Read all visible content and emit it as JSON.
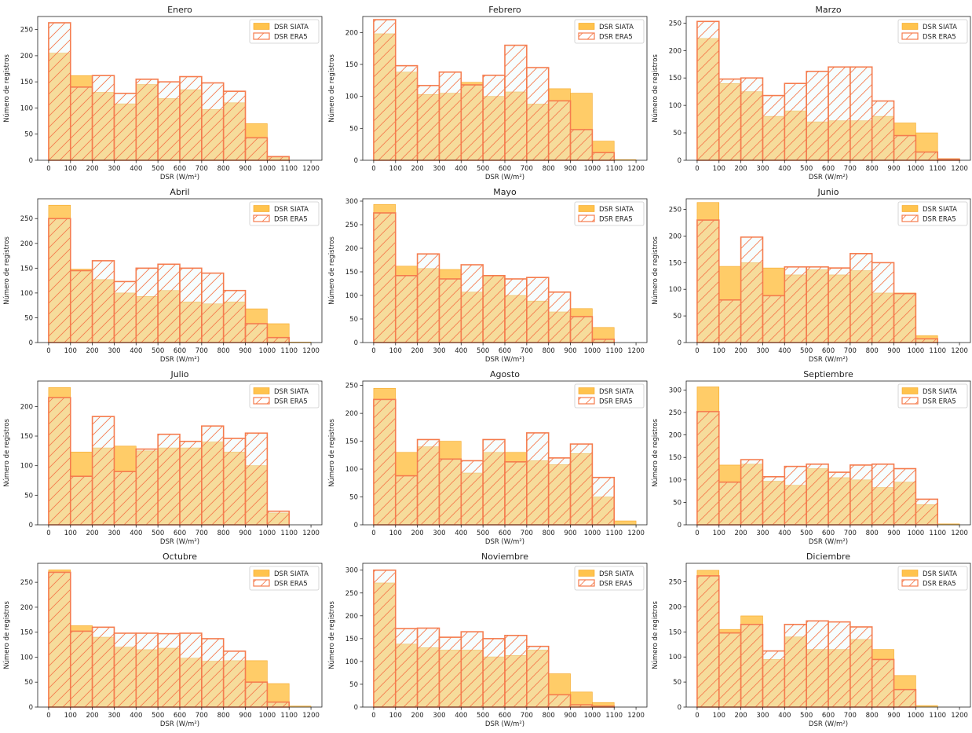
{
  "colors": {
    "siata_fill": "#ffc34d",
    "siata_edge": "#f5a623",
    "era5_edge": "#f57c4e",
    "era5_fill": "#e6fafc",
    "overlap_fill": "#f5e1bb",
    "axis": "#222222"
  },
  "chart_data": [
    {
      "type": "bar",
      "title": "Enero",
      "xlabel": "DSR (W/m²)",
      "ylabel": "Número de registros",
      "categories": [
        "0-100",
        "100-200",
        "200-300",
        "300-400",
        "400-500",
        "500-600",
        "600-700",
        "700-800",
        "800-900",
        "900-1000",
        "1000-1100",
        "1100-1200"
      ],
      "xticks": [
        "0",
        "100",
        "200",
        "300",
        "400",
        "500",
        "600",
        "700",
        "800",
        "900",
        "1000",
        "1100",
        "1200"
      ],
      "ylim": [
        0,
        275
      ],
      "yticks": [
        0,
        50,
        100,
        150,
        200,
        250
      ],
      "legend_position": "top-right",
      "series": [
        {
          "name": "DSR SIATA",
          "values": [
            205,
            162,
            130,
            108,
            145,
            118,
            135,
            97,
            110,
            70,
            5,
            0
          ]
        },
        {
          "name": "DSR ERA5",
          "values": [
            263,
            140,
            162,
            128,
            155,
            150,
            160,
            148,
            132,
            43,
            7,
            0
          ]
        }
      ]
    },
    {
      "type": "bar",
      "title": "Febrero",
      "xlabel": "DSR (W/m²)",
      "ylabel": "Número de registros",
      "categories": [
        "0-100",
        "100-200",
        "200-300",
        "300-400",
        "400-500",
        "500-600",
        "600-700",
        "700-800",
        "800-900",
        "900-1000",
        "1000-1100",
        "1100-1200"
      ],
      "xticks": [
        "0",
        "100",
        "200",
        "300",
        "400",
        "500",
        "600",
        "700",
        "800",
        "900",
        "1000",
        "1100",
        "1200"
      ],
      "ylim": [
        0,
        225
      ],
      "yticks": [
        0,
        50,
        100,
        150,
        200
      ],
      "legend_position": "top-right",
      "series": [
        {
          "name": "DSR SIATA",
          "values": [
            198,
            138,
            103,
            105,
            122,
            100,
            107,
            88,
            112,
            105,
            30,
            1
          ]
        },
        {
          "name": "DSR ERA5",
          "values": [
            220,
            148,
            117,
            138,
            118,
            133,
            180,
            145,
            93,
            48,
            12,
            0
          ]
        }
      ]
    },
    {
      "type": "bar",
      "title": "Marzo",
      "xlabel": "DSR (W/m²)",
      "ylabel": "Número de registros",
      "categories": [
        "0-100",
        "100-200",
        "200-300",
        "300-400",
        "400-500",
        "500-600",
        "600-700",
        "700-800",
        "800-900",
        "900-1000",
        "1000-1100",
        "1100-1200"
      ],
      "xticks": [
        "0",
        "100",
        "200",
        "300",
        "400",
        "500",
        "600",
        "700",
        "800",
        "900",
        "1000",
        "1100",
        "1200"
      ],
      "ylim": [
        0,
        262
      ],
      "yticks": [
        0,
        50,
        100,
        150,
        200,
        250
      ],
      "legend_position": "top-right",
      "series": [
        {
          "name": "DSR SIATA",
          "values": [
            222,
            140,
            125,
            80,
            90,
            70,
            72,
            72,
            80,
            68,
            50,
            3
          ]
        },
        {
          "name": "DSR ERA5",
          "values": [
            253,
            148,
            150,
            118,
            140,
            162,
            170,
            170,
            108,
            45,
            15,
            2
          ]
        }
      ]
    },
    {
      "type": "bar",
      "title": "Abril",
      "xlabel": "DSR (W/m²)",
      "ylabel": "Número de registros",
      "categories": [
        "0-100",
        "100-200",
        "200-300",
        "300-400",
        "400-500",
        "500-600",
        "600-700",
        "700-800",
        "800-900",
        "900-1000",
        "1000-1100",
        "1100-1200"
      ],
      "xticks": [
        "0",
        "100",
        "200",
        "300",
        "400",
        "500",
        "600",
        "700",
        "800",
        "900",
        "1000",
        "1100",
        "1200"
      ],
      "ylim": [
        0,
        290
      ],
      "yticks": [
        0,
        50,
        100,
        150,
        200,
        250
      ],
      "legend_position": "top-right",
      "series": [
        {
          "name": "DSR SIATA",
          "values": [
            277,
            148,
            127,
            100,
            93,
            105,
            82,
            78,
            82,
            68,
            38,
            1
          ]
        },
        {
          "name": "DSR ERA5",
          "values": [
            250,
            145,
            165,
            123,
            150,
            158,
            150,
            140,
            105,
            38,
            10,
            0
          ]
        }
      ]
    },
    {
      "type": "bar",
      "title": "Mayo",
      "xlabel": "DSR (W/m²)",
      "ylabel": "Número de registros",
      "categories": [
        "0-100",
        "100-200",
        "200-300",
        "300-400",
        "400-500",
        "500-600",
        "600-700",
        "700-800",
        "800-900",
        "900-1000",
        "1000-1100",
        "1100-1200"
      ],
      "xticks": [
        "0",
        "100",
        "200",
        "300",
        "400",
        "500",
        "600",
        "700",
        "800",
        "900",
        "1000",
        "1100",
        "1200"
      ],
      "ylim": [
        0,
        305
      ],
      "yticks": [
        0,
        50,
        100,
        150,
        200,
        250,
        300
      ],
      "legend_position": "top-right",
      "series": [
        {
          "name": "DSR SIATA",
          "values": [
            293,
            162,
            157,
            155,
            107,
            142,
            100,
            88,
            65,
            72,
            32,
            0
          ]
        },
        {
          "name": "DSR ERA5",
          "values": [
            275,
            142,
            188,
            135,
            165,
            142,
            135,
            138,
            107,
            55,
            7,
            0
          ]
        }
      ]
    },
    {
      "type": "bar",
      "title": "Junio",
      "xlabel": "DSR (W/m²)",
      "ylabel": "Número de registros",
      "categories": [
        "0-100",
        "100-200",
        "200-300",
        "300-400",
        "400-500",
        "500-600",
        "600-700",
        "700-800",
        "800-900",
        "900-1000",
        "1000-1100",
        "1100-1200"
      ],
      "xticks": [
        "0",
        "100",
        "200",
        "300",
        "400",
        "500",
        "600",
        "700",
        "800",
        "900",
        "1000",
        "1100",
        "1200"
      ],
      "ylim": [
        0,
        270
      ],
      "yticks": [
        0,
        50,
        100,
        150,
        200,
        250
      ],
      "legend_position": "top-right",
      "series": [
        {
          "name": "DSR SIATA",
          "values": [
            263,
            143,
            150,
            140,
            127,
            137,
            127,
            135,
            93,
            93,
            13,
            0
          ]
        },
        {
          "name": "DSR ERA5",
          "values": [
            230,
            80,
            198,
            88,
            142,
            142,
            140,
            167,
            150,
            92,
            7,
            0
          ]
        }
      ]
    },
    {
      "type": "bar",
      "title": "Julio",
      "xlabel": "DSR (W/m²)",
      "ylabel": "Número de registros",
      "categories": [
        "0-100",
        "100-200",
        "200-300",
        "300-400",
        "400-500",
        "500-600",
        "600-700",
        "700-800",
        "800-900",
        "900-1000",
        "1000-1100",
        "1100-1200"
      ],
      "xticks": [
        "0",
        "100",
        "200",
        "300",
        "400",
        "500",
        "600",
        "700",
        "800",
        "900",
        "1000",
        "1100",
        "1200"
      ],
      "ylim": [
        0,
        243
      ],
      "yticks": [
        0,
        50,
        100,
        150,
        200
      ],
      "legend_position": "top-right",
      "series": [
        {
          "name": "DSR SIATA",
          "values": [
            232,
            123,
            130,
            133,
            125,
            130,
            130,
            140,
            123,
            100,
            20,
            0
          ]
        },
        {
          "name": "DSR ERA5",
          "values": [
            215,
            82,
            183,
            90,
            128,
            153,
            141,
            167,
            146,
            155,
            23,
            0
          ]
        }
      ]
    },
    {
      "type": "bar",
      "title": "Agosto",
      "xlabel": "DSR (W/m²)",
      "ylabel": "Número de registros",
      "categories": [
        "0-100",
        "100-200",
        "200-300",
        "300-400",
        "400-500",
        "500-600",
        "600-700",
        "700-800",
        "800-900",
        "900-1000",
        "1000-1100",
        "1100-1200"
      ],
      "xticks": [
        "0",
        "100",
        "200",
        "300",
        "400",
        "500",
        "600",
        "700",
        "800",
        "900",
        "1000",
        "1100",
        "1200"
      ],
      "ylim": [
        0,
        258
      ],
      "yticks": [
        0,
        50,
        100,
        150,
        200,
        250
      ],
      "legend_position": "top-right",
      "series": [
        {
          "name": "DSR SIATA",
          "values": [
            245,
            130,
            140,
            150,
            93,
            130,
            130,
            115,
            108,
            128,
            50,
            7
          ]
        },
        {
          "name": "DSR ERA5",
          "values": [
            225,
            88,
            153,
            118,
            115,
            153,
            113,
            165,
            120,
            145,
            85,
            0
          ]
        }
      ]
    },
    {
      "type": "bar",
      "title": "Septiembre",
      "xlabel": "DSR (W/m²)",
      "ylabel": "Número de registros",
      "categories": [
        "0-100",
        "100-200",
        "200-300",
        "300-400",
        "400-500",
        "500-600",
        "600-700",
        "700-800",
        "800-900",
        "900-1000",
        "1000-1100",
        "1100-1200"
      ],
      "xticks": [
        "0",
        "100",
        "200",
        "300",
        "400",
        "500",
        "600",
        "700",
        "800",
        "900",
        "1000",
        "1100",
        "1200"
      ],
      "ylim": [
        0,
        320
      ],
      "yticks": [
        0,
        50,
        100,
        150,
        200,
        250,
        300
      ],
      "legend_position": "top-right",
      "series": [
        {
          "name": "DSR SIATA",
          "values": [
            307,
            133,
            135,
            97,
            88,
            125,
            105,
            100,
            83,
            95,
            45,
            2
          ]
        },
        {
          "name": "DSR ERA5",
          "values": [
            252,
            95,
            145,
            107,
            130,
            135,
            117,
            133,
            135,
            125,
            57,
            0
          ]
        }
      ]
    },
    {
      "type": "bar",
      "title": "Octubre",
      "xlabel": "DSR (W/m²)",
      "ylabel": "Número de registros",
      "categories": [
        "0-100",
        "100-200",
        "200-300",
        "300-400",
        "400-500",
        "500-600",
        "600-700",
        "700-800",
        "800-900",
        "900-1000",
        "1000-1100",
        "1100-1200"
      ],
      "xticks": [
        "0",
        "100",
        "200",
        "300",
        "400",
        "500",
        "600",
        "700",
        "800",
        "900",
        "1000",
        "1100",
        "1200"
      ],
      "ylim": [
        0,
        288
      ],
      "yticks": [
        0,
        50,
        100,
        150,
        200,
        250
      ],
      "legend_position": "top-right",
      "series": [
        {
          "name": "DSR SIATA",
          "values": [
            275,
            163,
            140,
            120,
            115,
            118,
            98,
            92,
            93,
            93,
            47,
            2
          ]
        },
        {
          "name": "DSR ERA5",
          "values": [
            270,
            152,
            160,
            148,
            148,
            147,
            148,
            137,
            112,
            50,
            10,
            0
          ]
        }
      ]
    },
    {
      "type": "bar",
      "title": "Noviembre",
      "xlabel": "DSR (W/m²)",
      "ylabel": "Número de registros",
      "categories": [
        "0-100",
        "100-200",
        "200-300",
        "300-400",
        "400-500",
        "500-600",
        "600-700",
        "700-800",
        "800-900",
        "900-1000",
        "1000-1100",
        "1100-1200"
      ],
      "xticks": [
        "0",
        "100",
        "200",
        "300",
        "400",
        "500",
        "600",
        "700",
        "800",
        "900",
        "1000",
        "1100",
        "1200"
      ],
      "ylim": [
        0,
        315
      ],
      "yticks": [
        0,
        50,
        100,
        150,
        200,
        250,
        300
      ],
      "legend_position": "top-right",
      "series": [
        {
          "name": "DSR SIATA",
          "values": [
            272,
            138,
            130,
            125,
            125,
            110,
            113,
            125,
            73,
            33,
            10,
            0
          ]
        },
        {
          "name": "DSR ERA5",
          "values": [
            300,
            172,
            173,
            153,
            165,
            150,
            157,
            133,
            27,
            5,
            2,
            0
          ]
        }
      ]
    },
    {
      "type": "bar",
      "title": "Diciembre",
      "xlabel": "DSR (W/m²)",
      "ylabel": "Número de registros",
      "categories": [
        "0-100",
        "100-200",
        "200-300",
        "300-400",
        "400-500",
        "500-600",
        "600-700",
        "700-800",
        "800-900",
        "900-1000",
        "1000-1100",
        "1100-1200"
      ],
      "xticks": [
        "0",
        "100",
        "200",
        "300",
        "400",
        "500",
        "600",
        "700",
        "800",
        "900",
        "1000",
        "1100",
        "1200"
      ],
      "ylim": [
        0,
        287
      ],
      "yticks": [
        0,
        50,
        100,
        150,
        200,
        250
      ],
      "legend_position": "top-right",
      "series": [
        {
          "name": "DSR SIATA",
          "values": [
            273,
            155,
            182,
            95,
            140,
            115,
            115,
            135,
            115,
            63,
            3,
            0
          ]
        },
        {
          "name": "DSR ERA5",
          "values": [
            262,
            148,
            165,
            112,
            165,
            172,
            170,
            160,
            95,
            35,
            0,
            0
          ]
        }
      ]
    }
  ]
}
